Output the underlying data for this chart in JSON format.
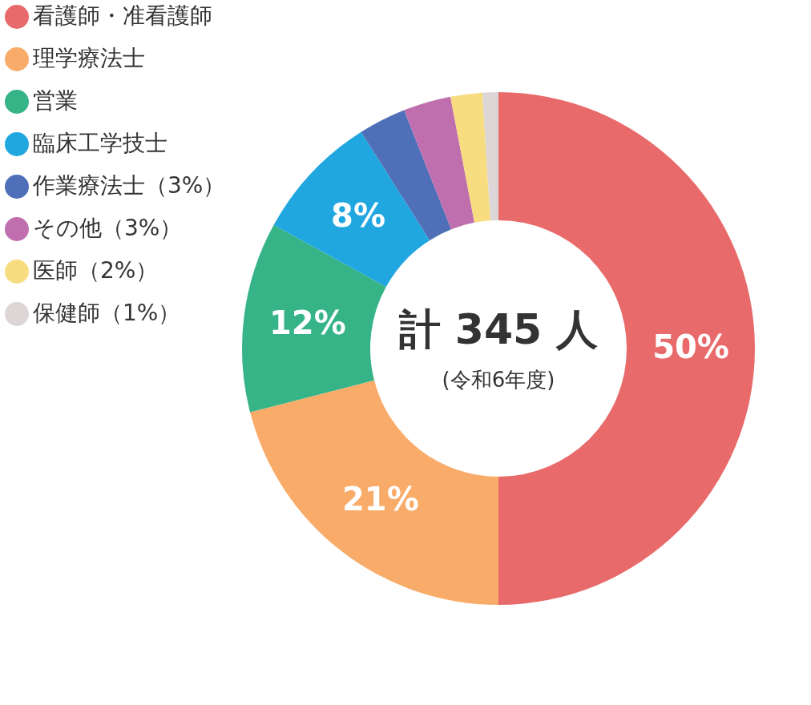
{
  "chart_data": {
    "type": "donut",
    "categories": [
      "看護師・准看護師",
      "理学療法士",
      "営業",
      "臨床工学技士",
      "作業療法士（3%）",
      "その他（3%）",
      "医師（2%）",
      "保健師（1%）"
    ],
    "values": [
      50,
      21,
      12,
      8,
      3,
      3,
      2,
      1
    ],
    "colors": [
      "#e96a6a",
      "#f9ac6a",
      "#36b488",
      "#21a7e0",
      "#4f6fb8",
      "#c06fae",
      "#f7dc80",
      "#dcd6d6"
    ],
    "value_labels": [
      "50%",
      "21%",
      "12%",
      "8%",
      null,
      null,
      null,
      null
    ],
    "annotations": [
      "計 345 人",
      "(令和6年度)"
    ],
    "legend": "left"
  }
}
